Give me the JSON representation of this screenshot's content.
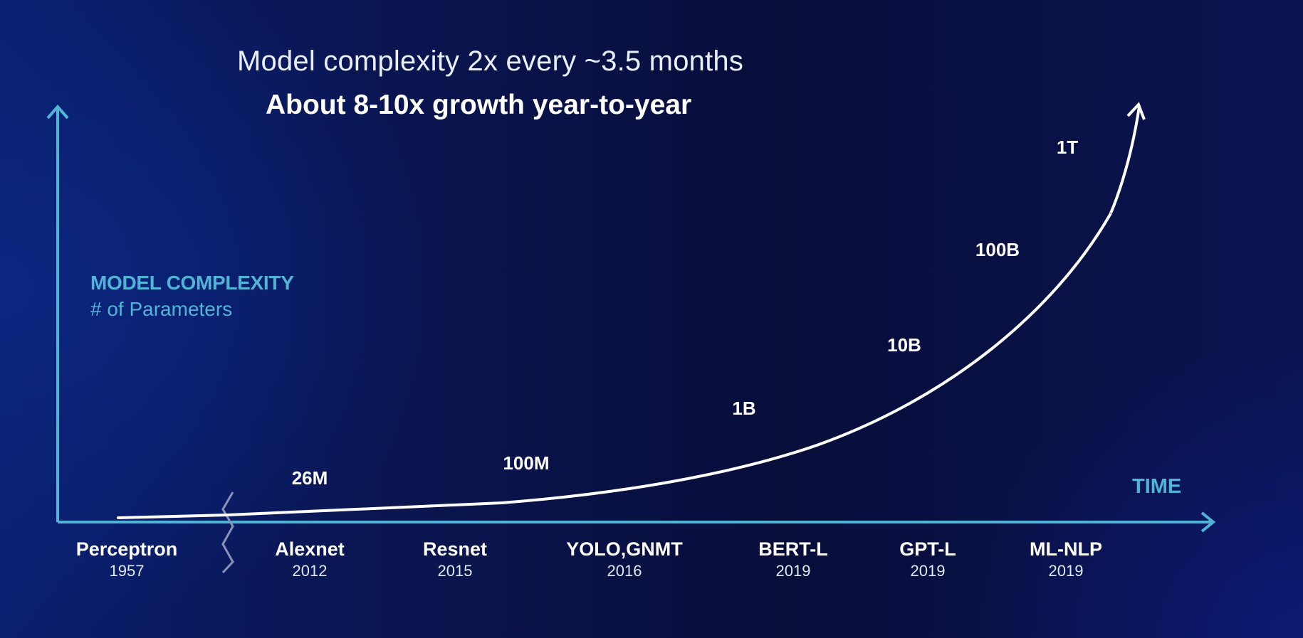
{
  "chart_data": {
    "type": "line",
    "title": "Model complexity 2x every ~3.5 months",
    "subtitle": "About 8-10x growth year-to-year",
    "ylabel": "MODEL COMPLEXITY",
    "ylabel_sub": "# of Parameters",
    "xlabel": "TIME",
    "axis_break_after": "Perceptron",
    "categories": [
      {
        "name": "Perceptron",
        "year": "1957"
      },
      {
        "name": "Alexnet",
        "year": "2012"
      },
      {
        "name": "Resnet",
        "year": "2015"
      },
      {
        "name": "YOLO,GNMT",
        "year": "2016"
      },
      {
        "name": "BERT-L",
        "year": "2019"
      },
      {
        "name": "GPT-L",
        "year": "2019"
      },
      {
        "name": "ML-NLP",
        "year": "2019"
      }
    ],
    "value_labels": [
      "26M",
      "100M",
      "1B",
      "10B",
      "100B",
      "1T"
    ],
    "colors": {
      "axis": "#4fb4d6",
      "curve": "#ffffff",
      "axis_break": "#8a92b8"
    }
  }
}
